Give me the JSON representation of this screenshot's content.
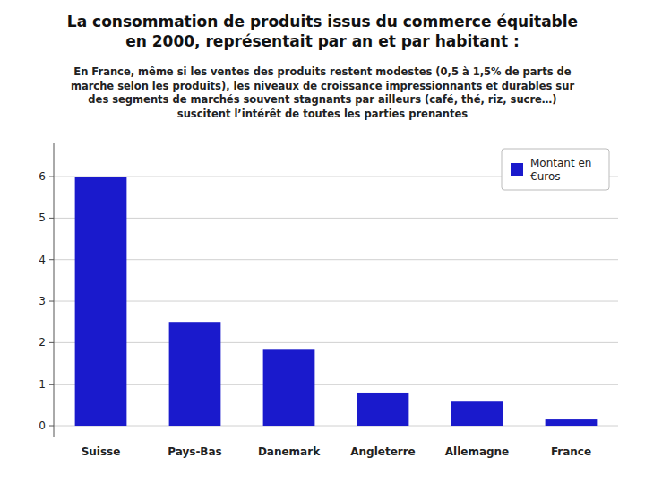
{
  "chart_data": {
    "type": "bar",
    "title": "La consommation de produits issus du commerce équitable\nen 2000, représentait par an et par habitant :",
    "subtitle": "En France, même si les ventes des produits restent modestes (0,5 à 1,5% de parts de\nmarche selon les produits), les niveaux de croissance impressionnants et durables sur\ndes segments de marchés souvent stagnants par ailleurs (café, thé, riz, sucre…)\nsuscitent l’intérêt de toutes les parties prenantes",
    "categories": [
      "Suisse",
      "Pays-Bas",
      "Danemark",
      "Angleterre",
      "Allemagne",
      "France"
    ],
    "series": [
      {
        "name": "Montant en\n€uros",
        "color": "#1a1acc",
        "values": [
          6.0,
          2.5,
          1.85,
          0.8,
          0.6,
          0.15
        ]
      }
    ],
    "ylim": [
      -0.28,
      6.8
    ],
    "yticks": [
      0,
      1,
      2,
      3,
      4,
      5,
      6
    ],
    "grid": true,
    "legend": "upper right"
  }
}
